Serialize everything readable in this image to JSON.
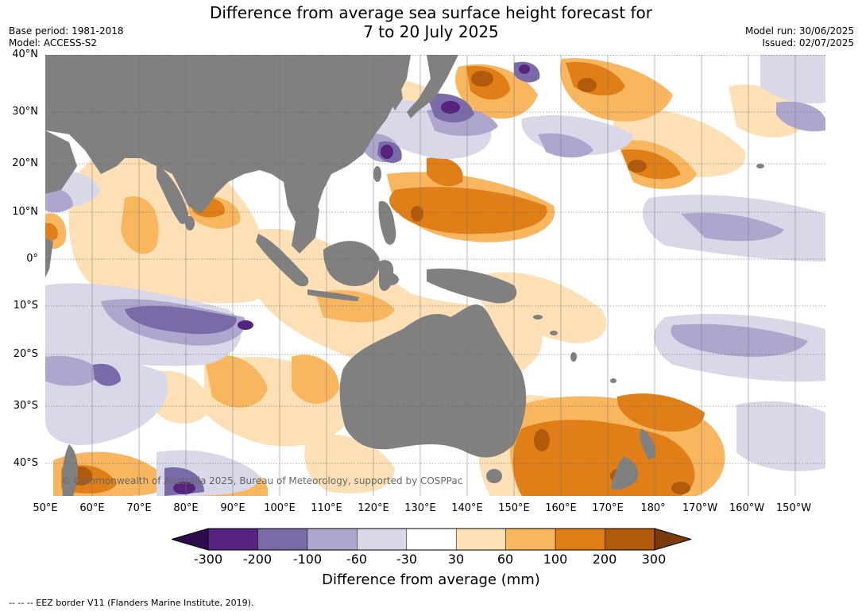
{
  "header": {
    "title_line1": "Difference from average sea surface height forecast for",
    "title_line2": "7 to 20 July 2025",
    "base_period": "Base period: 1981-2018",
    "model": "Model: ACCESS-S2",
    "model_run": "Model run: 30/06/2025",
    "issued": "Issued: 02/07/2025"
  },
  "map": {
    "latitude_labels": [
      "40°N",
      "30°N",
      "20°N",
      "10°N",
      "0°",
      "10°S",
      "20°S",
      "30°S",
      "40°S"
    ],
    "longitude_labels": [
      "50°E",
      "60°E",
      "70°E",
      "80°E",
      "90°E",
      "100°E",
      "110°E",
      "120°E",
      "130°E",
      "140°E",
      "150°E",
      "160°E",
      "170°E",
      "180°",
      "170°W",
      "160°W",
      "150°W"
    ],
    "copyright": "© Commonwealth of Australia 2025, Bureau of Meteorology, supported by COSPPac",
    "colors": {
      "land": "#808080",
      "ocean": "#ffffff",
      "gridline": "#555555"
    }
  },
  "colorbar": {
    "title": "Difference from average (mm)",
    "ticks": [
      "-300",
      "-200",
      "-100",
      "-60",
      "-30",
      "30",
      "60",
      "100",
      "200",
      "300"
    ],
    "colors": [
      "#2d0b4e",
      "#56237f",
      "#7b6aa8",
      "#aea6cd",
      "#d8d8e9",
      "#ffffff",
      "#fde0b6",
      "#f8b65f",
      "#e07f18",
      "#b15a0b",
      "#7a3a0a"
    ]
  },
  "footer": {
    "eez_note": "--  --  -- EEZ border V11 (Flanders Marine Institute, 2019)."
  }
}
